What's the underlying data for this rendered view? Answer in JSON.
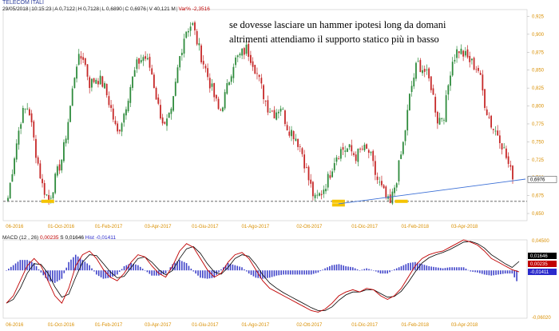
{
  "header": {
    "instrument": "TELECOM ITALI",
    "date": "29/05/2018",
    "time": "10:15:23",
    "ohlc": [
      "A 0,7122",
      "H 0,7128",
      "L 0,6890",
      "C 0,6976"
    ],
    "volume": "V 40,121 M",
    "var_pct": "Var% -2,3516"
  },
  "annotation": {
    "line1": "se dovesse lasciare un hammer ipotesi long da domani",
    "line2": "altrimenti attendiamo il supporto statico più in basso"
  },
  "macd_header": {
    "label": "MACD",
    "params": "(12 , 26)",
    "macd_value": "0,00235",
    "signal_label": "S",
    "signal_value": "0,01646",
    "hist_label": "Hist",
    "hist_value": "-0,01411"
  },
  "colors": {
    "up_candle": "#2e8b3c",
    "down_candle": "#c62828",
    "trendline": "#3b6fd6",
    "support_line": "#555555",
    "highlight": "#f5c400",
    "macd_line": "#c00000",
    "signal_line": "#000000",
    "histogram": "#3f43c9",
    "axis_text": "#d98f00"
  },
  "chart_data": [
    {
      "type": "candlestick",
      "name": "TELECOM ITALI",
      "y_ticks": [
        "0,925",
        "0,900",
        "0,875",
        "0,850",
        "0,825",
        "0,800",
        "0,775",
        "0,750",
        "0,725",
        "0,700",
        "0,675",
        "0,650"
      ],
      "ylim": [
        0.64,
        0.93
      ],
      "x_labels": [
        "06-2016",
        "01-Oct-2016",
        "01-Feb-2017",
        "03-Apr-2017",
        "01-Giu-2017",
        "01-Ago-2017",
        "02-Ott-2017",
        "01-Dic-2017",
        "01-Feb-2018",
        "03-Apr-2018"
      ],
      "last_price_label": "0,6976",
      "last_price": 0.6976,
      "support_level": 0.667,
      "grid": false,
      "series": [
        {
          "name": "close",
          "values": [
            0.672,
            0.735,
            0.788,
            0.8,
            0.74,
            0.69,
            0.668,
            0.7,
            0.73,
            0.79,
            0.86,
            0.87,
            0.83,
            0.84,
            0.83,
            0.8,
            0.76,
            0.79,
            0.83,
            0.86,
            0.87,
            0.85,
            0.8,
            0.77,
            0.79,
            0.86,
            0.905,
            0.915,
            0.88,
            0.85,
            0.82,
            0.79,
            0.82,
            0.86,
            0.87,
            0.88,
            0.86,
            0.83,
            0.8,
            0.79,
            0.8,
            0.77,
            0.76,
            0.74,
            0.7,
            0.668,
            0.68,
            0.7,
            0.73,
            0.74,
            0.74,
            0.73,
            0.74,
            0.735,
            0.7,
            0.68,
            0.66,
            0.7,
            0.75,
            0.82,
            0.86,
            0.85,
            0.83,
            0.78,
            0.79,
            0.86,
            0.88,
            0.87,
            0.86,
            0.85,
            0.8,
            0.77,
            0.76,
            0.73,
            0.698
          ]
        },
        {
          "name": "trendline",
          "values": [
            [
              0.668,
              0.698
            ]
          ]
        }
      ]
    },
    {
      "type": "macd",
      "y_ticks": [
        "0,04500",
        "-0,06020"
      ],
      "ylim": [
        -0.0602,
        0.045
      ],
      "values_label": [
        "0,01646",
        "0,00235",
        "-0,01411"
      ],
      "x_labels": [
        "06-2016",
        "01-Oct-2016",
        "01-Feb-2017",
        "03-Apr-2017",
        "01-Giu-2017",
        "01-Ago-2017",
        "02-Ott-2017",
        "01-Dic-2017",
        "01-Feb-2018",
        "03-Apr-2018"
      ],
      "series": [
        {
          "name": "MACD",
          "values": [
            -0.04,
            -0.03,
            -0.01,
            0.01,
            0.02,
            0.01,
            -0.01,
            -0.03,
            -0.04,
            -0.02,
            0.01,
            0.025,
            0.03,
            0.02,
            0.005,
            -0.005,
            -0.01,
            0.0,
            0.015,
            0.025,
            0.022,
            0.01,
            0.0,
            -0.005,
            0.01,
            0.03,
            0.04,
            0.035,
            0.02,
            0.005,
            -0.005,
            0.0,
            0.015,
            0.025,
            0.028,
            0.02,
            0.005,
            -0.01,
            -0.02,
            -0.025,
            -0.03,
            -0.035,
            -0.04,
            -0.045,
            -0.05,
            -0.052,
            -0.048,
            -0.04,
            -0.03,
            -0.025,
            -0.022,
            -0.025,
            -0.02,
            -0.022,
            -0.03,
            -0.035,
            -0.03,
            -0.02,
            -0.005,
            0.01,
            0.02,
            0.025,
            0.028,
            0.03,
            0.035,
            0.04,
            0.045,
            0.042,
            0.038,
            0.03,
            0.02,
            0.015,
            0.01,
            0.005,
            0.002
          ]
        },
        {
          "name": "Signal",
          "values": [
            -0.04,
            -0.035,
            -0.02,
            0.0,
            0.013,
            0.012,
            0.0,
            -0.018,
            -0.032,
            -0.028,
            -0.005,
            0.015,
            0.025,
            0.024,
            0.013,
            0.002,
            -0.006,
            -0.004,
            0.008,
            0.02,
            0.022,
            0.015,
            0.005,
            -0.002,
            0.004,
            0.02,
            0.033,
            0.036,
            0.027,
            0.013,
            0.002,
            -0.001,
            0.008,
            0.02,
            0.025,
            0.023,
            0.012,
            -0.002,
            -0.013,
            -0.02,
            -0.026,
            -0.031,
            -0.036,
            -0.041,
            -0.046,
            -0.05,
            -0.05,
            -0.045,
            -0.036,
            -0.029,
            -0.025,
            -0.025,
            -0.022,
            -0.022,
            -0.027,
            -0.032,
            -0.031,
            -0.024,
            -0.012,
            0.002,
            0.014,
            0.021,
            0.025,
            0.028,
            0.032,
            0.037,
            0.042,
            0.043,
            0.04,
            0.034,
            0.025,
            0.019,
            0.013,
            0.008,
            0.016
          ]
        }
      ]
    }
  ]
}
